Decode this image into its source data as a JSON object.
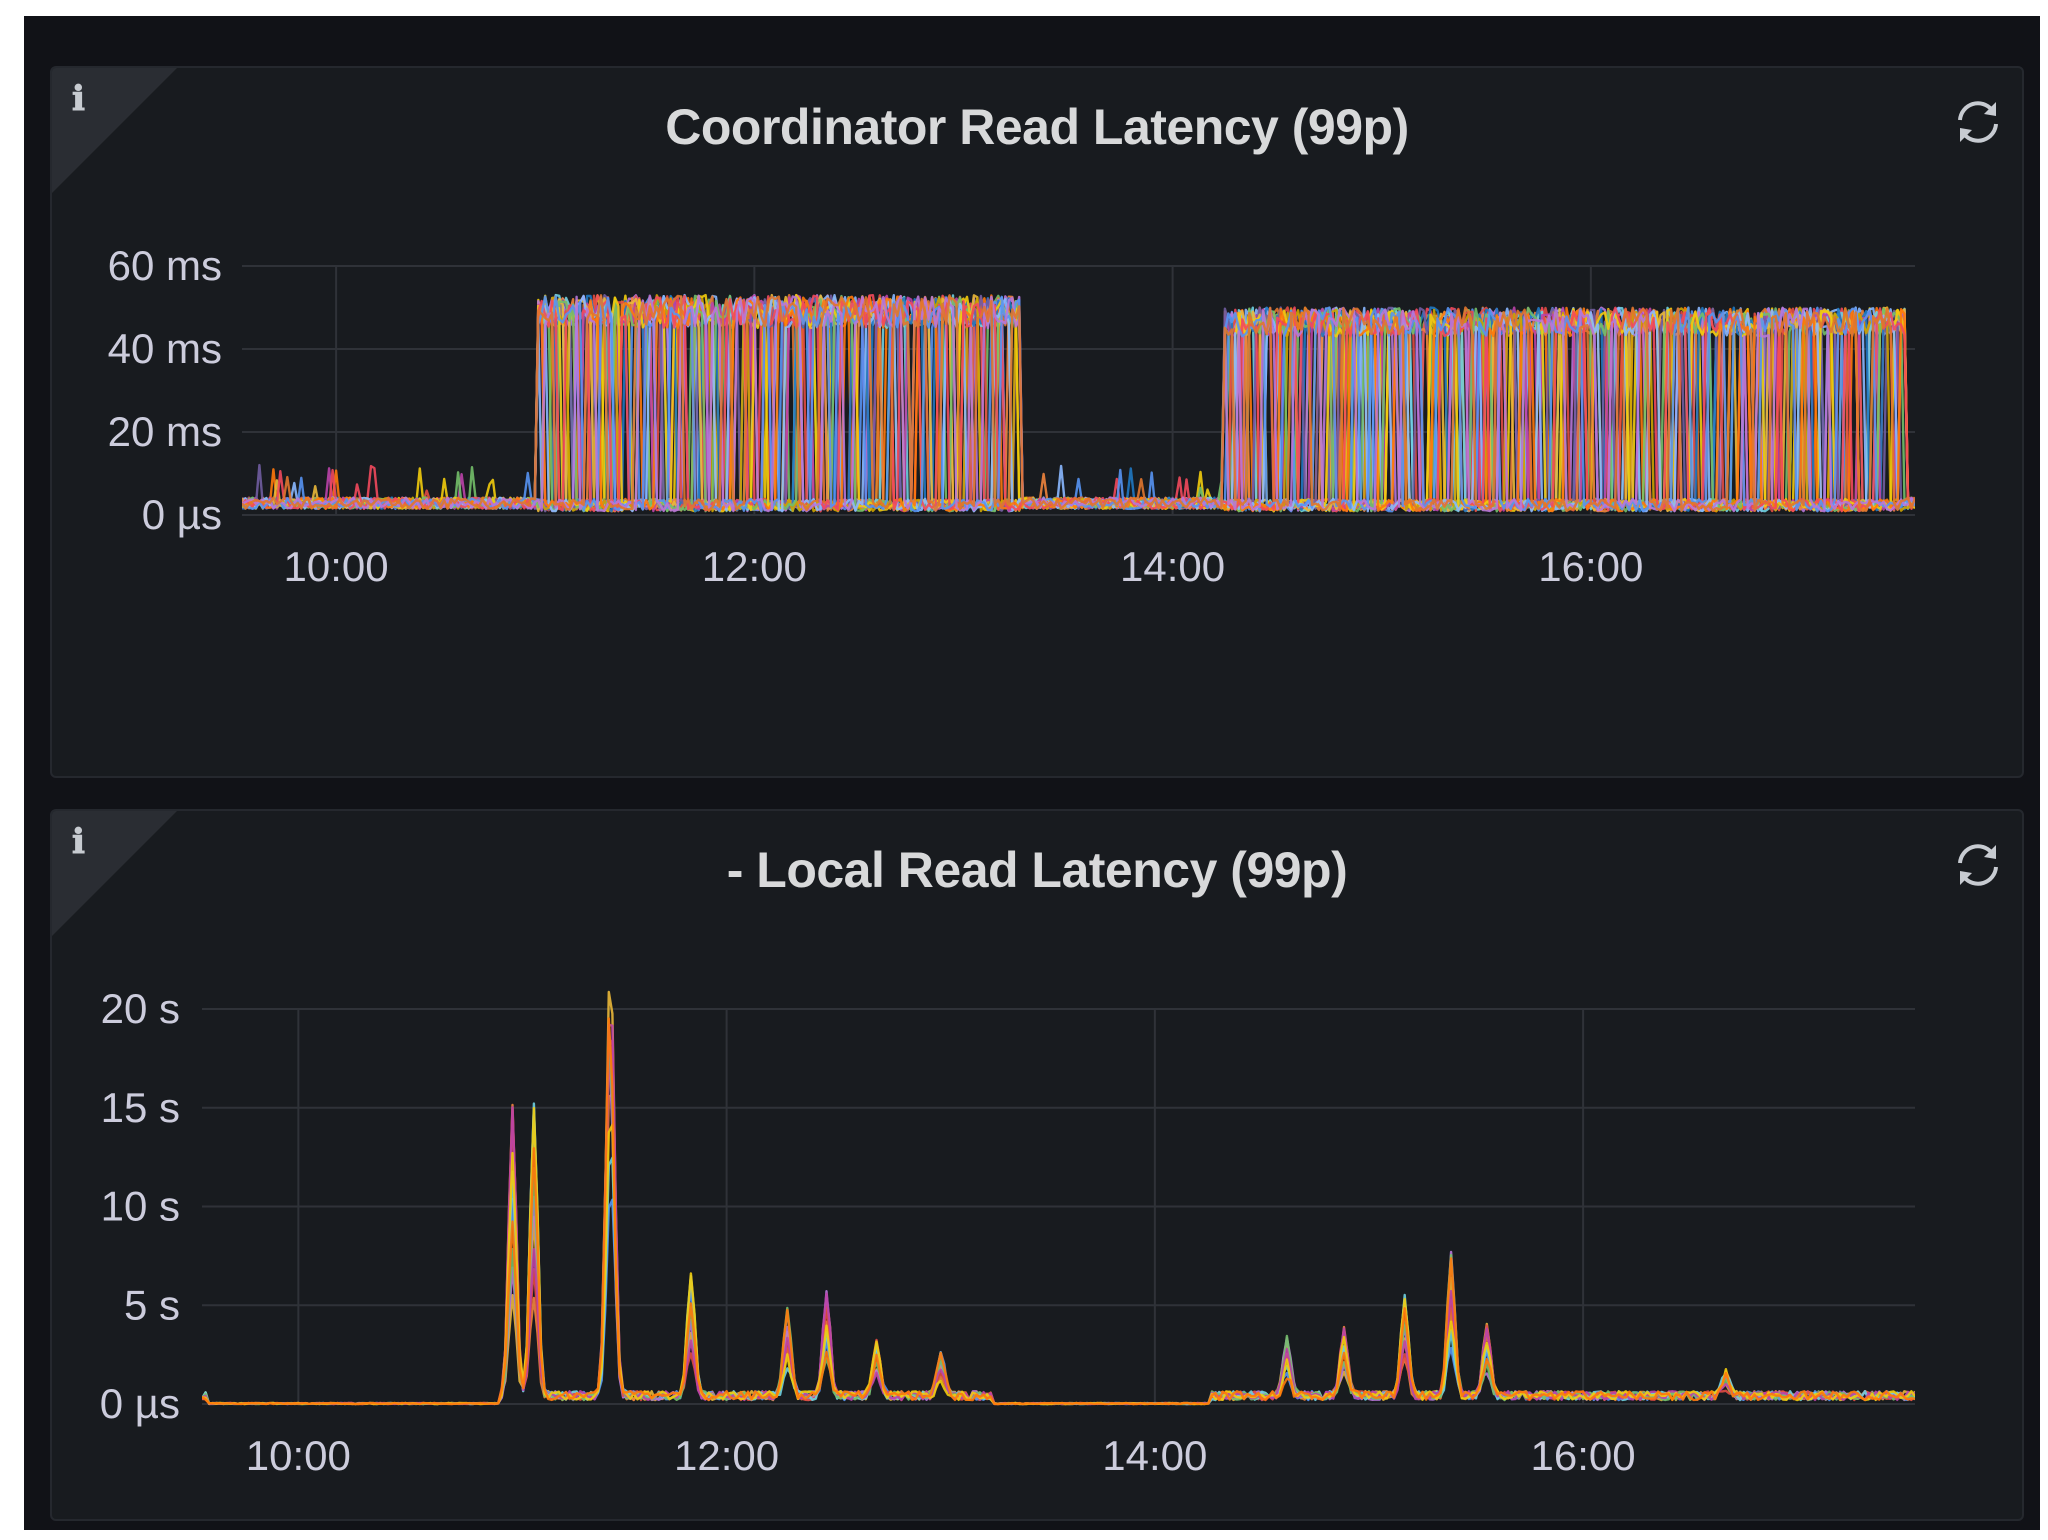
{
  "panels": [
    {
      "title": "Coordinator Read Latency (99p)",
      "info_icon": "ℹ",
      "refresh_icon": "refresh-icon",
      "chart_data": {
        "type": "line",
        "title": "Coordinator Read Latency (99p)",
        "xlabel": "",
        "ylabel": "",
        "x_ticks": [
          "10:00",
          "12:00",
          "14:00",
          "16:00"
        ],
        "x_tick_hours": [
          10,
          12,
          14,
          16
        ],
        "xlim_hours": [
          9.55,
          17.55
        ],
        "y_ticks": [
          "0 µs",
          "20 ms",
          "40 ms",
          "60 ms"
        ],
        "y_tick_values": [
          0,
          20,
          40,
          60
        ],
        "ylim": [
          0,
          60
        ],
        "y_unit": "ms",
        "grid": true,
        "legend": "none",
        "series_colors": [
          "#73bf69",
          "#f2cc0c",
          "#8ab8ff",
          "#ff780a",
          "#f2495c",
          "#5794f2",
          "#b877d9",
          "#e0752d",
          "#6ed0e0",
          "#ef843c",
          "#e24d42",
          "#1f78c1",
          "#ba43a9",
          "#705da0",
          "#eab839",
          "#cca300"
        ],
        "series_count": 24,
        "baseline_ms": 3,
        "bursts": [
          {
            "start": "10:58",
            "end": "13:17",
            "high_ms": [
              45,
              53
            ]
          },
          {
            "start": "14:15",
            "end": "17:30",
            "high_ms": [
              43,
              50
            ]
          }
        ]
      }
    },
    {
      "title": "- Local Read Latency (99p)",
      "info_icon": "ℹ",
      "refresh_icon": "refresh-icon",
      "chart_data": {
        "type": "line",
        "title": "- Local Read Latency (99p)",
        "xlabel": "",
        "ylabel": "",
        "x_ticks": [
          "10:00",
          "12:00",
          "14:00",
          "16:00"
        ],
        "x_tick_hours": [
          10,
          12,
          14,
          16
        ],
        "xlim_hours": [
          9.55,
          17.55
        ],
        "y_ticks": [
          "0 µs",
          "5 s",
          "10 s",
          "15 s",
          "20 s"
        ],
        "y_tick_values": [
          0,
          5,
          10,
          15,
          20
        ],
        "ylim": [
          0,
          20
        ],
        "y_unit": "s",
        "grid": true,
        "legend": "none",
        "series_colors": [
          "#eab839",
          "#ef843c",
          "#5794f2",
          "#b877d9",
          "#e24d42",
          "#6ed0e0",
          "#73bf69",
          "#ba43a9",
          "#f2cc0c",
          "#ff780a"
        ],
        "series_count": 10,
        "spikes": [
          {
            "time": "11:00",
            "peak_s": 14.5
          },
          {
            "time": "11:06",
            "peak_s": 14.7
          },
          {
            "time": "11:27",
            "peak_s": 15.5
          },
          {
            "time": "11:28",
            "peak_s": 11.0
          },
          {
            "time": "11:50",
            "peak_s": 6.2
          },
          {
            "time": "12:17",
            "peak_s": 4.3
          },
          {
            "time": "12:28",
            "peak_s": 5.1
          },
          {
            "time": "12:42",
            "peak_s": 2.8
          },
          {
            "time": "13:00",
            "peak_s": 2.2
          },
          {
            "time": "14:37",
            "peak_s": 2.8
          },
          {
            "time": "14:53",
            "peak_s": 3.4
          },
          {
            "time": "15:10",
            "peak_s": 4.9
          },
          {
            "time": "15:23",
            "peak_s": 7.1
          },
          {
            "time": "15:33",
            "peak_s": 3.6
          },
          {
            "time": "16:40",
            "peak_s": 1.2
          }
        ],
        "quiet_periods": [
          {
            "start": "09:35",
            "end": "10:57",
            "level_s": 0.0
          },
          {
            "start": "13:15",
            "end": "14:15",
            "level_s": 0.0
          }
        ],
        "typical_level_s": 0.5
      }
    }
  ]
}
